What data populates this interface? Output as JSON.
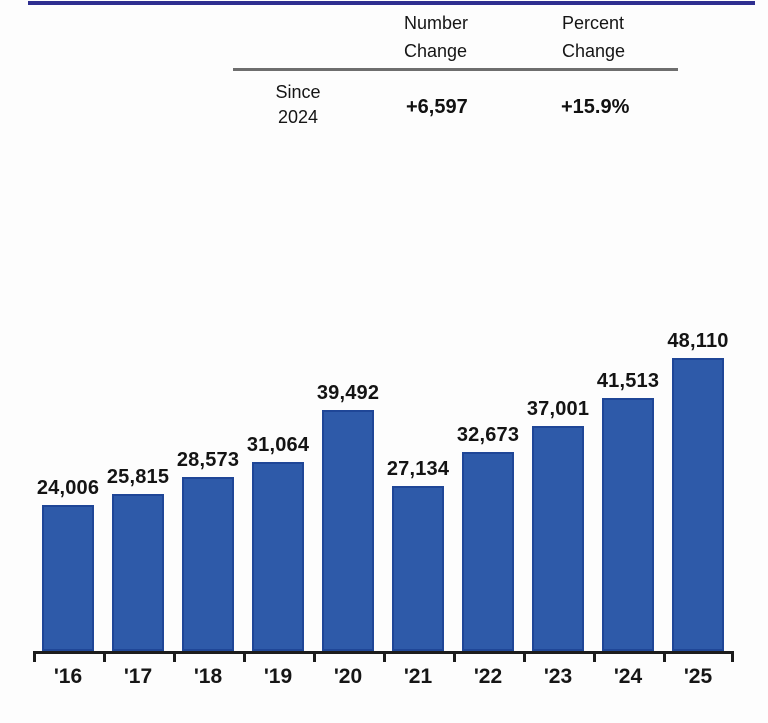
{
  "summary_table": {
    "columns": [
      {
        "label": "Number\nChange"
      },
      {
        "label": "Percent\nChange"
      }
    ],
    "row": {
      "label": "Since\n2024",
      "number_change": "+6,597",
      "percent_change": "+15.9%"
    }
  },
  "chart_data": {
    "type": "bar",
    "categories": [
      "'16",
      "'17",
      "'18",
      "'19",
      "'20",
      "'21",
      "'22",
      "'23",
      "'24",
      "'25"
    ],
    "values": [
      24006,
      25815,
      28573,
      31064,
      39492,
      27134,
      32673,
      37001,
      41513,
      48110
    ],
    "value_labels": [
      "24,006",
      "25,815",
      "28,573",
      "31,064",
      "39,492",
      "27,134",
      "32,673",
      "37,001",
      "41,513",
      "48,110"
    ],
    "title": "",
    "xlabel": "",
    "ylabel": "",
    "ylim": [
      0,
      48110
    ],
    "grid": false,
    "legend": "none",
    "data_labels_position": "above-bars"
  },
  "colors": {
    "bar_fill": "#2e5aa9",
    "bar_border": "#1f4697",
    "top_rule": "#2e2e90",
    "header_rule": "#6e6e6e",
    "axis": "#1c1c1c"
  }
}
